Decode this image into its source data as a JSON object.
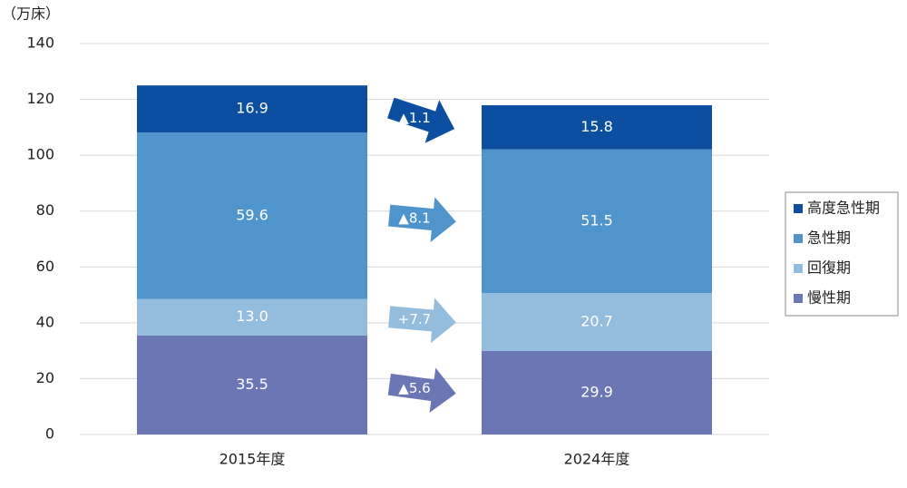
{
  "chart_data": {
    "type": "stacked_bar",
    "unit_label": "（万床）",
    "categories": [
      "2015年度",
      "2024年度"
    ],
    "series": [
      {
        "name": "慢性期",
        "color": "#6b77b5",
        "values": [
          35.5,
          29.9
        ],
        "value_labels": [
          "35.5",
          "29.9"
        ]
      },
      {
        "name": "回復期",
        "color": "#94bcdc",
        "values": [
          13.0,
          20.7
        ],
        "value_labels": [
          "13.0",
          "20.7"
        ]
      },
      {
        "name": "急性期",
        "color": "#4f95cc",
        "values": [
          59.6,
          51.5
        ],
        "value_labels": [
          "59.6",
          "51.5"
        ]
      },
      {
        "name": "高度急性期",
        "color": "#0c4fa0",
        "values": [
          16.9,
          15.8
        ],
        "value_labels": [
          "16.9",
          "15.8"
        ]
      }
    ],
    "change_labels": [
      "▲5.6",
      "+7.7",
      "▲8.1",
      "▲1.1"
    ],
    "ylim": [
      0,
      140
    ],
    "yticks": [
      0,
      20,
      40,
      60,
      80,
      100,
      120,
      140
    ],
    "grid": true,
    "legend": "right"
  }
}
